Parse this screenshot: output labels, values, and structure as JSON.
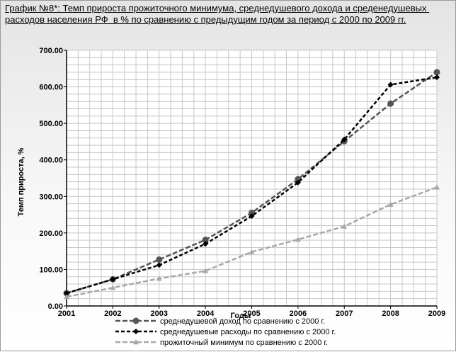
{
  "chart_data": {
    "type": "line",
    "title": "График №8*: Темп прироста прожиточного минимума, среднедушевого дохода и среденедушевых расходов населения РФ  в % по сравнению с предыдущим годом за период с 2000 по 2009 гг.",
    "xlabel": "Годы",
    "ylabel": "Темп прироста, %",
    "categories": [
      "2001",
      "2002",
      "2003",
      "2004",
      "2005",
      "2006",
      "2007",
      "2008",
      "2009"
    ],
    "ylim": [
      0,
      700
    ],
    "yticks": [
      "0.00",
      "100.00",
      "200.00",
      "300.00",
      "400.00",
      "500.00",
      "600.00",
      "700.00"
    ],
    "grid": true,
    "legend_position": "bottom",
    "series": [
      {
        "name": "среднедушевой доход по сравнению с 2000 г.",
        "values": [
          35,
          73,
          127,
          181,
          255,
          347,
          451,
          554,
          640
        ],
        "color": "#555555",
        "marker": "circle",
        "dash": "7,3"
      },
      {
        "name": "среднедушевые расходы по сравнению с 2000 г.",
        "values": [
          35,
          73,
          112,
          170,
          246,
          338,
          456,
          606,
          626
        ],
        "color": "#000000",
        "marker": "diamond",
        "dash": "5,3"
      },
      {
        "name": "прожиточный минимум по сравнению с 2000 г.",
        "values": [
          25,
          50,
          75,
          96,
          148,
          182,
          218,
          278,
          325
        ],
        "color": "#a8a8a8",
        "marker": "triangle",
        "dash": "7,3"
      }
    ]
  }
}
